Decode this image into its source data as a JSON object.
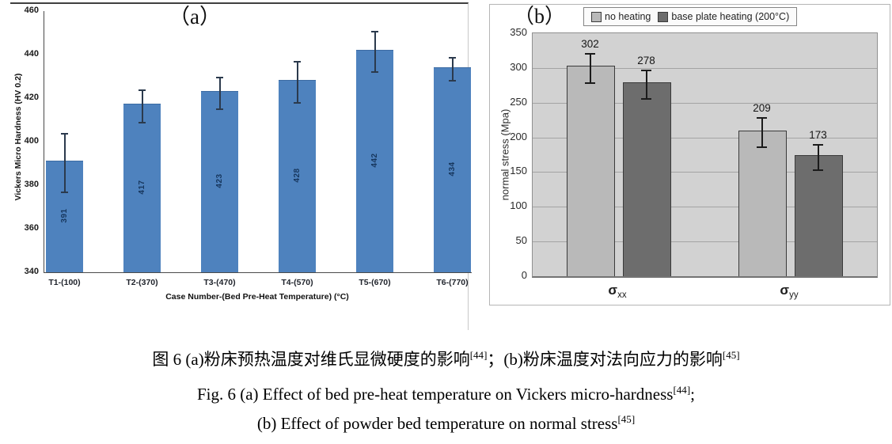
{
  "figure": {
    "caption_cn": {
      "part1": "图 6 (a)粉床预热温度对维氏显微硬度的影响",
      "ref1": "[44]",
      "part2": "；(b)粉床温度对法向应力的影响",
      "ref2": "[45]"
    },
    "caption_en1": {
      "text": "Fig. 6 (a) Effect of bed pre-heat temperature on Vickers micro-hardness",
      "ref": "[44]",
      "tail": ";"
    },
    "caption_en2": {
      "text": "(b) Effect of powder bed temperature on normal stress",
      "ref": "[45]"
    }
  },
  "chart_data": [
    {
      "type": "bar",
      "panel": "a",
      "title": "（a）",
      "categories": [
        "T1-(100)",
        "T2-(370)",
        "T3-(470)",
        "T4-(570)",
        "T5-(670)",
        "T6-(770)"
      ],
      "values": [
        391,
        417,
        423,
        428,
        442,
        434
      ],
      "errors": [
        13,
        7,
        7,
        9,
        9,
        5
      ],
      "xlabel": "Case Number-(Bed Pre-Heat Temperature) (°C)",
      "ylabel": "Vickers Micro Hardness (HV 0.2)",
      "ylim": [
        340,
        460
      ],
      "ytick_step": 20,
      "bar_color": "#4e82be",
      "grid": false,
      "value_label_color": "#17375e"
    },
    {
      "type": "bar",
      "panel": "b",
      "title": "（b）",
      "categories": [
        "σxx",
        "σyy"
      ],
      "series": [
        {
          "name": "no heating",
          "values": [
            302,
            209
          ],
          "errors": [
            20,
            20
          ],
          "color": "#b9b9b9"
        },
        {
          "name": "base plate heating (200°C)",
          "values": [
            278,
            173
          ],
          "errors": [
            19,
            17
          ],
          "color": "#6d6d6d"
        }
      ],
      "xlabel": "",
      "ylabel": "normal stress (Mpa)",
      "ylim": [
        0,
        350
      ],
      "ytick_step": 50,
      "plot_bg": "#d2d2d2",
      "grid": true,
      "legend_position": "top"
    }
  ]
}
